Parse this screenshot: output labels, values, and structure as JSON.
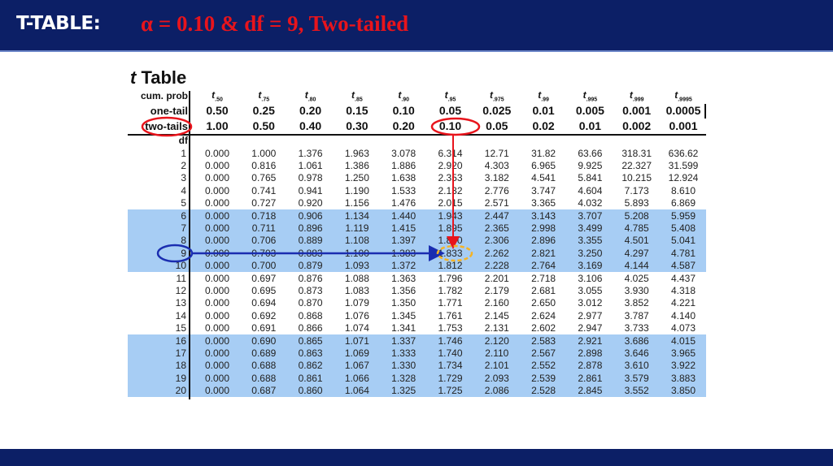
{
  "header": {
    "title": "T-TABLE:",
    "subtitle": "α = 0.10  &  df = 9, Two-tailed"
  },
  "table": {
    "title_t": "t",
    "title_rest": " Table",
    "row_labels": {
      "cum_prob": "cum. prob",
      "one_tail": "one-tail",
      "two_tails": "two-tails",
      "df": "df"
    },
    "cum_prob": [
      ".50",
      ".75",
      ".80",
      ".85",
      ".90",
      ".95",
      ".975",
      ".99",
      ".995",
      ".999",
      ".9995"
    ],
    "one_tail": [
      "0.50",
      "0.25",
      "0.20",
      "0.15",
      "0.10",
      "0.05",
      "0.025",
      "0.01",
      "0.005",
      "0.001",
      "0.0005"
    ],
    "two_tails": [
      "1.00",
      "0.50",
      "0.40",
      "0.30",
      "0.20",
      "0.10",
      "0.05",
      "0.02",
      "0.01",
      "0.002",
      "0.001"
    ],
    "highlight_color": "#a7cdf4",
    "highlighted_df": [
      6,
      7,
      8,
      9,
      10,
      16,
      17,
      18,
      19,
      20
    ],
    "rows": [
      {
        "df": "1",
        "v": [
          "0.000",
          "1.000",
          "1.376",
          "1.963",
          "3.078",
          "6.314",
          "12.71",
          "31.82",
          "63.66",
          "318.31",
          "636.62"
        ]
      },
      {
        "df": "2",
        "v": [
          "0.000",
          "0.816",
          "1.061",
          "1.386",
          "1.886",
          "2.920",
          "4.303",
          "6.965",
          "9.925",
          "22.327",
          "31.599"
        ]
      },
      {
        "df": "3",
        "v": [
          "0.000",
          "0.765",
          "0.978",
          "1.250",
          "1.638",
          "2.353",
          "3.182",
          "4.541",
          "5.841",
          "10.215",
          "12.924"
        ]
      },
      {
        "df": "4",
        "v": [
          "0.000",
          "0.741",
          "0.941",
          "1.190",
          "1.533",
          "2.132",
          "2.776",
          "3.747",
          "4.604",
          "7.173",
          "8.610"
        ]
      },
      {
        "df": "5",
        "v": [
          "0.000",
          "0.727",
          "0.920",
          "1.156",
          "1.476",
          "2.015",
          "2.571",
          "3.365",
          "4.032",
          "5.893",
          "6.869"
        ]
      },
      {
        "df": "6",
        "v": [
          "0.000",
          "0.718",
          "0.906",
          "1.134",
          "1.440",
          "1.943",
          "2.447",
          "3.143",
          "3.707",
          "5.208",
          "5.959"
        ]
      },
      {
        "df": "7",
        "v": [
          "0.000",
          "0.711",
          "0.896",
          "1.119",
          "1.415",
          "1.895",
          "2.365",
          "2.998",
          "3.499",
          "4.785",
          "5.408"
        ]
      },
      {
        "df": "8",
        "v": [
          "0.000",
          "0.706",
          "0.889",
          "1.108",
          "1.397",
          "1.860",
          "2.306",
          "2.896",
          "3.355",
          "4.501",
          "5.041"
        ]
      },
      {
        "df": "9",
        "v": [
          "0.000",
          "0.703",
          "0.883",
          "1.100",
          "1.383",
          "1.833",
          "2.262",
          "2.821",
          "3.250",
          "4.297",
          "4.781"
        ]
      },
      {
        "df": "10",
        "v": [
          "0.000",
          "0.700",
          "0.879",
          "1.093",
          "1.372",
          "1.812",
          "2.228",
          "2.764",
          "3.169",
          "4.144",
          "4.587"
        ]
      },
      {
        "df": "11",
        "v": [
          "0.000",
          "0.697",
          "0.876",
          "1.088",
          "1.363",
          "1.796",
          "2.201",
          "2.718",
          "3.106",
          "4.025",
          "4.437"
        ]
      },
      {
        "df": "12",
        "v": [
          "0.000",
          "0.695",
          "0.873",
          "1.083",
          "1.356",
          "1.782",
          "2.179",
          "2.681",
          "3.055",
          "3.930",
          "4.318"
        ]
      },
      {
        "df": "13",
        "v": [
          "0.000",
          "0.694",
          "0.870",
          "1.079",
          "1.350",
          "1.771",
          "2.160",
          "2.650",
          "3.012",
          "3.852",
          "4.221"
        ]
      },
      {
        "df": "14",
        "v": [
          "0.000",
          "0.692",
          "0.868",
          "1.076",
          "1.345",
          "1.761",
          "2.145",
          "2.624",
          "2.977",
          "3.787",
          "4.140"
        ]
      },
      {
        "df": "15",
        "v": [
          "0.000",
          "0.691",
          "0.866",
          "1.074",
          "1.341",
          "1.753",
          "2.131",
          "2.602",
          "2.947",
          "3.733",
          "4.073"
        ]
      },
      {
        "df": "16",
        "v": [
          "0.000",
          "0.690",
          "0.865",
          "1.071",
          "1.337",
          "1.746",
          "2.120",
          "2.583",
          "2.921",
          "3.686",
          "4.015"
        ]
      },
      {
        "df": "17",
        "v": [
          "0.000",
          "0.689",
          "0.863",
          "1.069",
          "1.333",
          "1.740",
          "2.110",
          "2.567",
          "2.898",
          "3.646",
          "3.965"
        ]
      },
      {
        "df": "18",
        "v": [
          "0.000",
          "0.688",
          "0.862",
          "1.067",
          "1.330",
          "1.734",
          "2.101",
          "2.552",
          "2.878",
          "3.610",
          "3.922"
        ]
      },
      {
        "df": "19",
        "v": [
          "0.000",
          "0.688",
          "0.861",
          "1.066",
          "1.328",
          "1.729",
          "2.093",
          "2.539",
          "2.861",
          "3.579",
          "3.883"
        ]
      },
      {
        "df": "20",
        "v": [
          "0.000",
          "0.687",
          "0.860",
          "1.064",
          "1.325",
          "1.725",
          "2.086",
          "2.528",
          "2.845",
          "3.552",
          "3.850"
        ]
      }
    ]
  },
  "annotations": {
    "red": "#e8141c",
    "blue": "#1a2db0",
    "yellow": "#f5b324",
    "selected_two_tails": "0.10",
    "selected_df": "9",
    "result": "1.833"
  }
}
